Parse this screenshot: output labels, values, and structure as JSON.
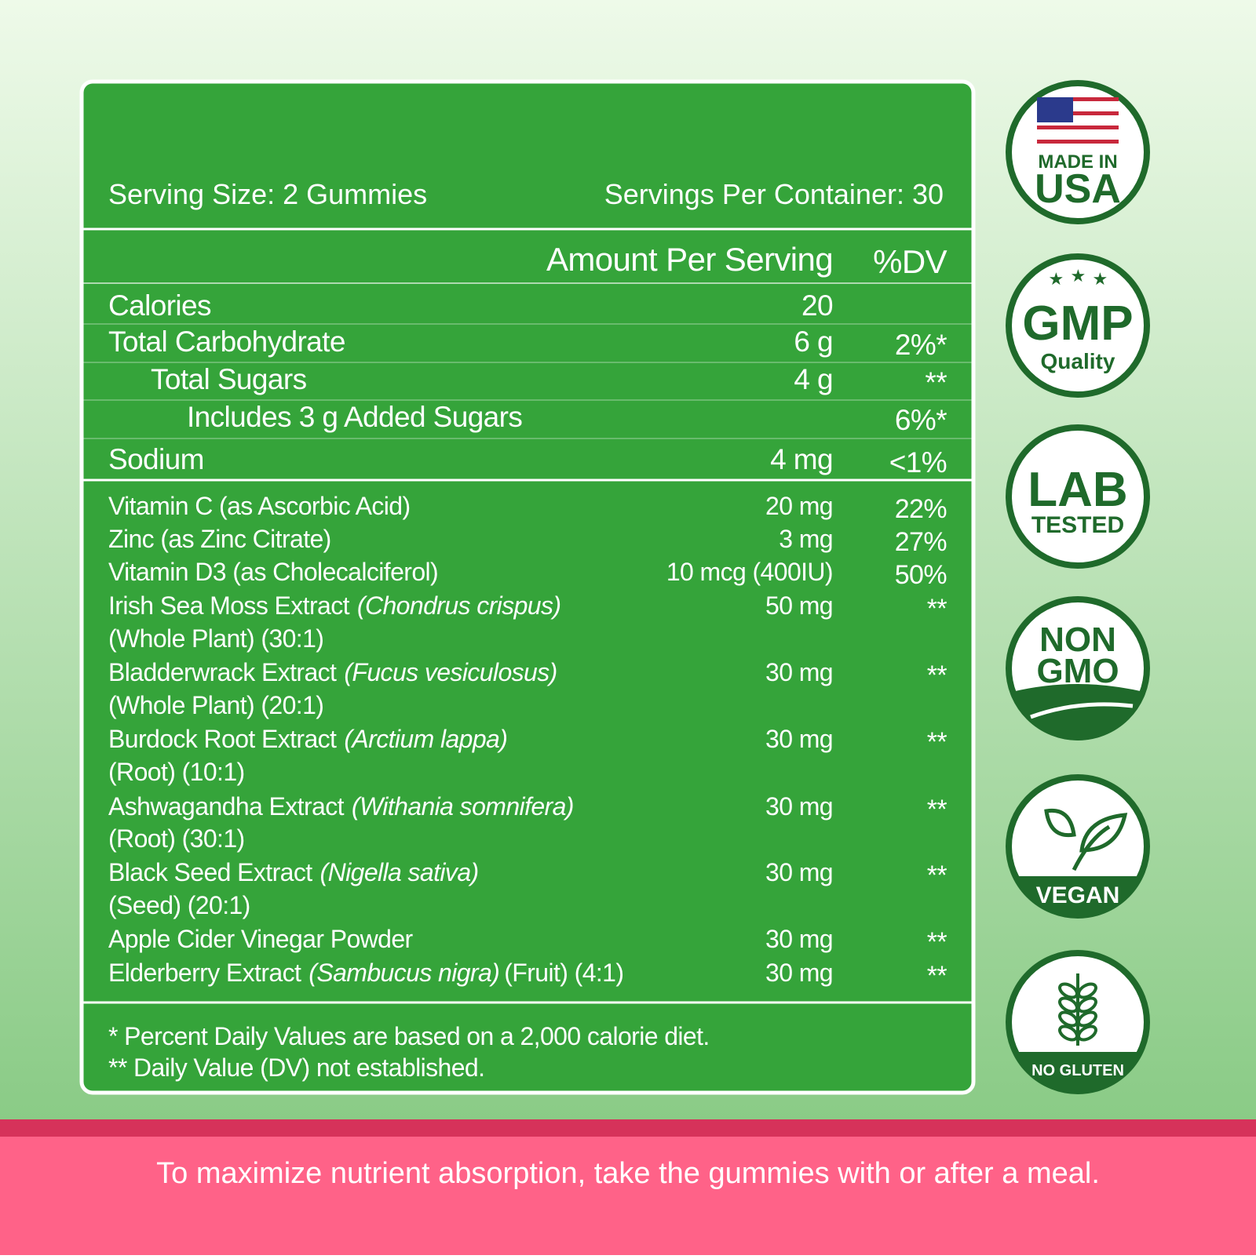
{
  "panel": {
    "serving_size": "Serving Size: 2 Gummies",
    "servings_per_container": "Servings Per Container: 30",
    "header": {
      "amount": "Amount Per Serving",
      "dv": "%DV"
    },
    "rows": [
      {
        "name": "Calories",
        "amount": "20"
      },
      {
        "name": "Total Carbohydrate",
        "amount": "6 g",
        "dv": "2%*"
      },
      {
        "name": "Total Sugars",
        "amount": "4 g",
        "dv": "**"
      },
      {
        "name": "Includes 3 g Added Sugars",
        "dv": "6%*"
      },
      {
        "name": "Sodium",
        "amount": "4 mg",
        "dv": "<1%"
      },
      {
        "name": "Vitamin C (as Ascorbic Acid)",
        "amount": "20 mg",
        "dv": "22%"
      },
      {
        "name": "Zinc (as Zinc Citrate)",
        "amount": "3 mg",
        "dv": "27%"
      },
      {
        "name": "Vitamin D3 (as Cholecalciferol)",
        "amount": "10 mcg (400IU)",
        "dv": "50%"
      },
      {
        "name": "Irish Sea Moss Extract",
        "latin": "(Chondrus crispus)",
        "detail": "(Whole Plant) (30:1)",
        "amount": "50 mg",
        "dv": "**"
      },
      {
        "name": "Bladderwrack Extract",
        "latin": "(Fucus vesiculosus)",
        "detail": "(Whole Plant) (20:1)",
        "amount": "30 mg",
        "dv": "**"
      },
      {
        "name": "Burdock Root Extract",
        "latin": "(Arctium lappa)",
        "detail": "(Root) (10:1)",
        "amount": "30 mg",
        "dv": "**"
      },
      {
        "name": "Ashwagandha Extract",
        "latin": "(Withania somnifera)",
        "detail": "(Root) (30:1)",
        "amount": "30 mg",
        "dv": "**"
      },
      {
        "name": "Black Seed Extract",
        "latin": "(Nigella sativa)",
        "detail": "(Seed) (20:1)",
        "amount": "30 mg",
        "dv": "**"
      },
      {
        "name": "Apple Cider Vinegar Powder",
        "amount": "30 mg",
        "dv": "**"
      },
      {
        "name": "Elderberry Extract",
        "latin": "(Sambucus nigra)",
        "tail": "(Fruit) (4:1)",
        "amount": "30 mg",
        "dv": "**"
      }
    ],
    "footnotes": [
      "* Percent Daily Values are based on a 2,000 calorie diet.",
      "** Daily Value (DV) not established."
    ]
  },
  "badges": [
    {
      "lines": [
        "MADE IN",
        "USA"
      ]
    },
    {
      "lines": [
        "GMP",
        "Quality"
      ]
    },
    {
      "lines": [
        "LAB",
        "TESTED"
      ]
    },
    {
      "lines": [
        "NON",
        "GMO"
      ]
    },
    {
      "lines": [
        "VEGAN"
      ]
    },
    {
      "lines": [
        "NO GLUTEN"
      ]
    }
  ],
  "banner": "To maximize nutrient absorption, take the gummies with or after a meal."
}
